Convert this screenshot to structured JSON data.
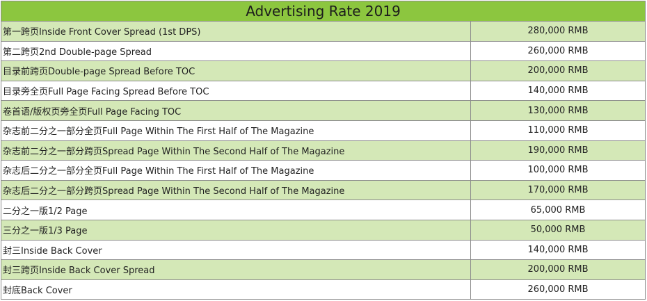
{
  "table": {
    "title": "Advertising Rate 2019",
    "rows": [
      {
        "name": "第一跨页Inside Front Cover Spread (1st DPS)",
        "price": "280,000 RMB"
      },
      {
        "name": "第二跨页2nd Double-page Spread",
        "price": "260,000 RMB"
      },
      {
        "name": "目录前跨页Double-page Spread Before TOC",
        "price": "200,000 RMB"
      },
      {
        "name": "目录旁全页Full Page Facing Spread Before TOC",
        "price": "140,000 RMB"
      },
      {
        "name": "卷首语/版权页旁全页Full Page Facing TOC",
        "price": "130,000 RMB"
      },
      {
        "name": "杂志前二分之一部分全页Full Page Within The First Half of The Magazine",
        "price": "110,000 RMB"
      },
      {
        "name": "杂志前二分之一部分跨页Spread Page Within The Second Half of The Magazine",
        "price": "190,000 RMB"
      },
      {
        "name": "杂志后二分之一部分全页Full Page Within The First Half of The Magazine",
        "price": "100,000 RMB"
      },
      {
        "name": "杂志后二分之一部分跨页Spread Page Within The Second Half of The Magazine",
        "price": "170,000 RMB"
      },
      {
        "name": "二分之一版1/2 Page",
        "price": "65,000 RMB"
      },
      {
        "name": "三分之一版1/3 Page",
        "price": "50,000 RMB"
      },
      {
        "name": "封三Inside Back Cover",
        "price": "140,000 RMB"
      },
      {
        "name": "封三跨页Inside Back Cover Spread",
        "price": "200,000 RMB"
      },
      {
        "name": "封底Back Cover",
        "price": "260,000 RMB"
      }
    ]
  },
  "colors": {
    "title_bg": "#8cc63f",
    "alt_row_bg": "#d4e8b7",
    "plain_row_bg": "#ffffff",
    "grid_line": "#8c8c8c"
  }
}
